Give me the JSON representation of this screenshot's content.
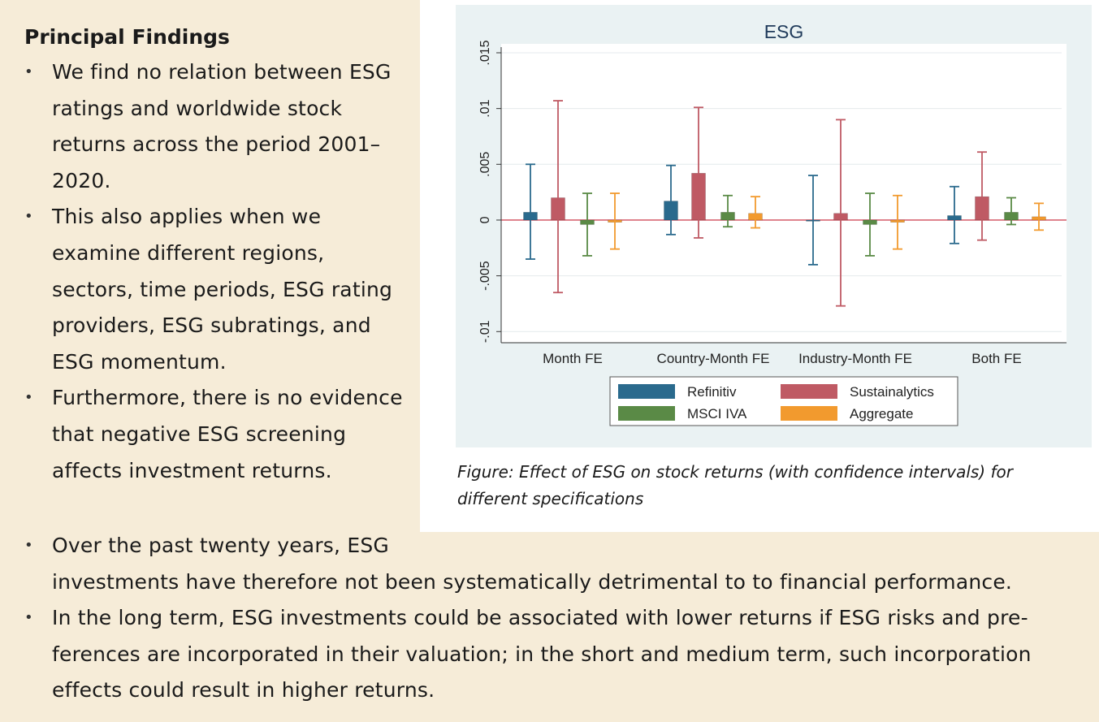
{
  "findings": {
    "title": "Principal Findings",
    "items": [
      "We find no relation between ESG ratings and worldwide stock returns across the period 2001–2020.",
      "This also applies when we examine different regions, sectors, time periods, ESG rating providers, ESG subratings, and ESG momentum.",
      "Furthermore, there is no evidence that negative ESG screening affects investment returns.",
      "Over the past twenty years, ESG\ninvestments have therefore not been systematically detrimental to to financial performance.",
      "In the long term, ESG investments could be associated with lower returns if ESG risks and pre-ferences are incorporated in their valuation; in the short and medium term, such incorporation effects could result in higher returns."
    ]
  },
  "caption": "Figure: Effect of ESG on stock returns (with confidence intervals) for different specifications",
  "chart_data": {
    "type": "bar",
    "title": "ESG",
    "categories": [
      "Month FE",
      "Country-Month FE",
      "Industry-Month FE",
      "Both FE"
    ],
    "y_ticks": [
      -0.01,
      -0.005,
      0,
      0.005,
      0.01,
      0.015
    ],
    "y_tick_labels": [
      "-.01",
      "-.005",
      "0",
      ".005",
      ".01",
      ".015"
    ],
    "ylim": [
      -0.011,
      0.0158
    ],
    "grid": true,
    "legend_position": "bottom",
    "reference_line": 0,
    "series": [
      {
        "name": "Refinitiv",
        "color": "#2a6a8d",
        "values": [
          0.0007,
          0.0017,
          -0.0001,
          0.0004
        ],
        "ci_low": [
          -0.0035,
          -0.0013,
          -0.004,
          -0.0021
        ],
        "ci_high": [
          0.005,
          0.0049,
          0.004,
          0.003
        ]
      },
      {
        "name": "Sustainalytics",
        "color": "#bf5a64",
        "values": [
          0.002,
          0.0042,
          0.0006,
          0.0021
        ],
        "ci_low": [
          -0.0065,
          -0.0016,
          -0.0077,
          -0.0018
        ],
        "ci_high": [
          0.0107,
          0.0101,
          0.009,
          0.0061
        ]
      },
      {
        "name": "MSCI IVA",
        "color": "#5a8a46",
        "values": [
          -0.0004,
          0.0007,
          -0.0004,
          0.0007
        ],
        "ci_low": [
          -0.0032,
          -0.0006,
          -0.0032,
          -0.0004
        ],
        "ci_high": [
          0.0024,
          0.0022,
          0.0024,
          0.002
        ]
      },
      {
        "name": "Aggregate",
        "color": "#f29a2e",
        "values": [
          -0.0002,
          0.0006,
          -0.0002,
          0.0003
        ],
        "ci_low": [
          -0.0026,
          -0.0007,
          -0.0026,
          -0.0009
        ],
        "ci_high": [
          0.0024,
          0.0021,
          0.0022,
          0.0015
        ]
      }
    ]
  }
}
